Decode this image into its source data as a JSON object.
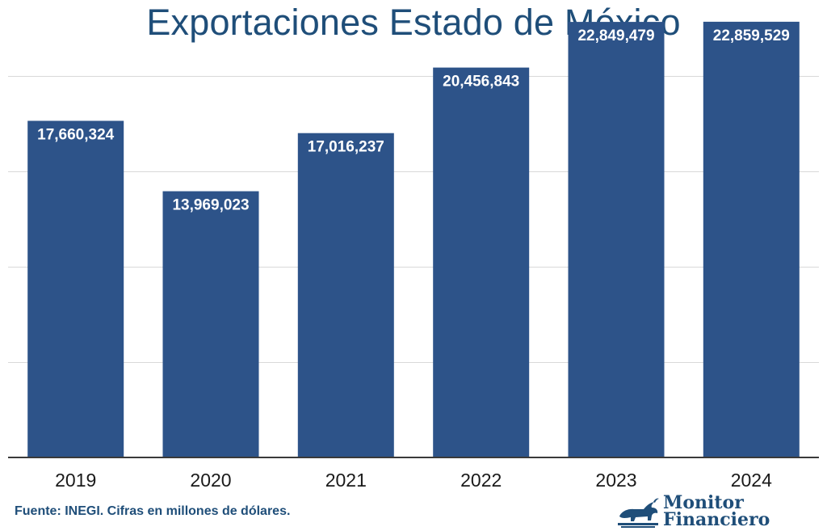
{
  "chart_data": {
    "type": "bar",
    "title": "Exportaciones Estado de México",
    "categories": [
      "2019",
      "2020",
      "2021",
      "2022",
      "2023",
      "2024"
    ],
    "values": [
      17660324,
      13969023,
      17016237,
      20456843,
      22849479,
      22859529
    ],
    "data_labels": [
      "17,660,324",
      "13,969,023",
      "17,016,237",
      "20,456,843",
      "22,849,479",
      "22,859,529"
    ],
    "ylim": [
      0,
      24000000
    ],
    "gridlines": [
      0,
      5000000,
      10000000,
      15000000,
      20000000
    ],
    "grid": true,
    "y_tick_labels_shown": false,
    "colors": {
      "bar": "#2d5389",
      "title": "#1f4e79",
      "label": "#ffffff"
    }
  },
  "footer": {
    "source": "Fuente: INEGI. Cifras en millones de dólares."
  },
  "brand": {
    "line1": "Monitor",
    "line2": "Financiero",
    "icon": "bull-icon"
  }
}
